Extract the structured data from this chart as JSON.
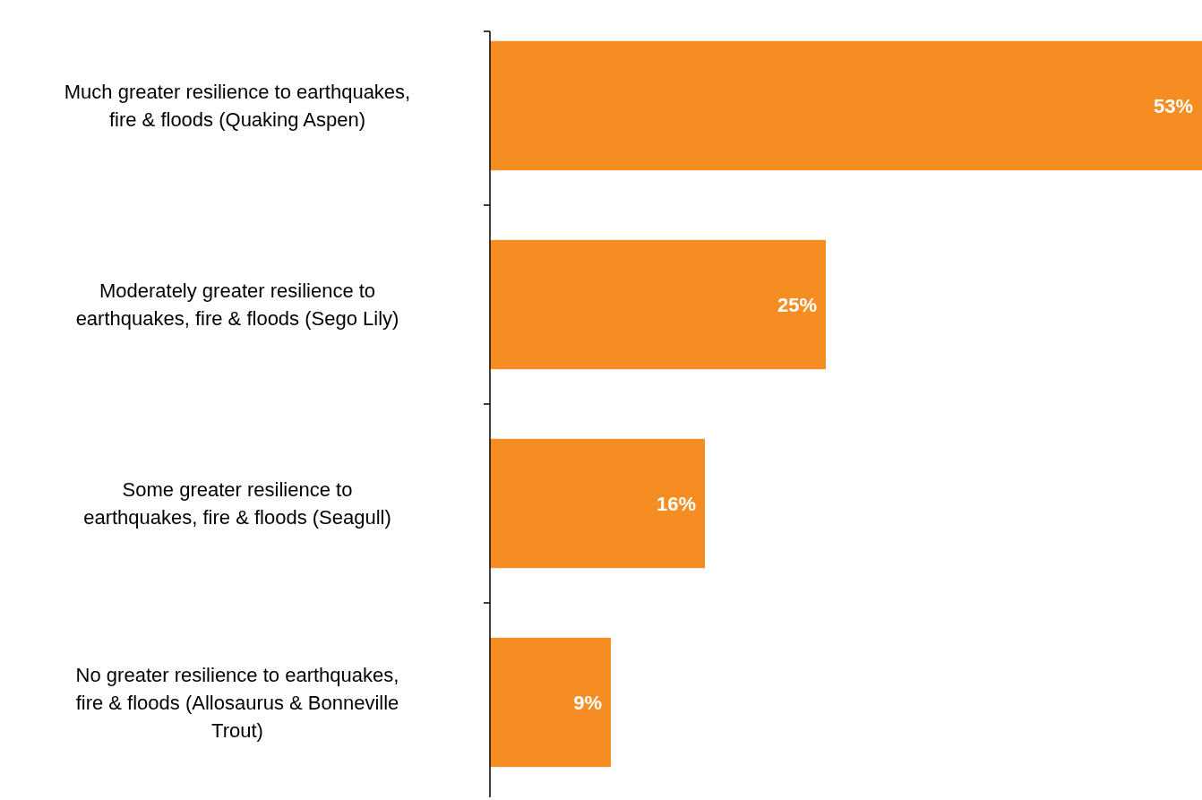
{
  "chart_data": {
    "type": "bar",
    "orientation": "horizontal",
    "categories": [
      "Much greater resilience to earthquakes,\nfire & floods (Quaking Aspen)",
      "Moderately greater resilience to\nearthquakes, fire & floods (Sego Lily)",
      "Some greater resilience to\nearthquakes, fire & floods (Seagull)",
      "No greater resilience to earthquakes,\nfire & floods (Allosaurus & Bonneville\nTrout)"
    ],
    "values": [
      53,
      25,
      16,
      9
    ],
    "value_labels": [
      "53%",
      "25%",
      "16%",
      "9%"
    ],
    "color": "#f58d22"
  }
}
